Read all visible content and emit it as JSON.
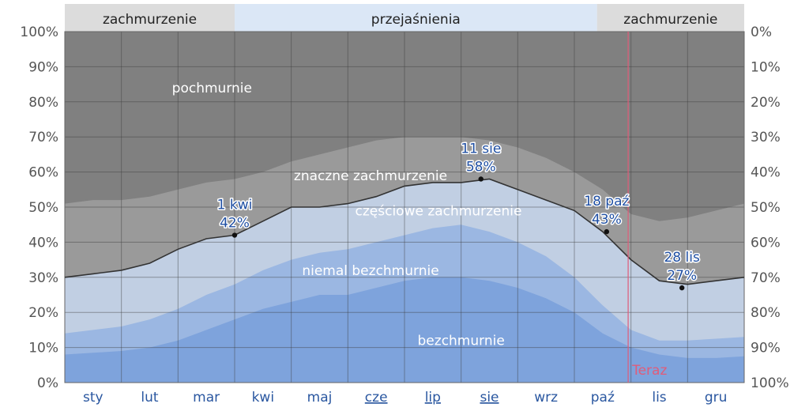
{
  "chart_data": {
    "type": "area",
    "title": "",
    "ylabel_left_ticks": [
      "0%",
      "10%",
      "20%",
      "30%",
      "40%",
      "50%",
      "60%",
      "70%",
      "80%",
      "90%",
      "100%"
    ],
    "ylabel_right_ticks": [
      "100%",
      "90%",
      "80%",
      "70%",
      "60%",
      "50%",
      "40%",
      "30%",
      "20%",
      "10%",
      "0%"
    ],
    "ylim": [
      0,
      100
    ],
    "months": [
      {
        "label": "sty",
        "underline": false
      },
      {
        "label": "lut",
        "underline": false
      },
      {
        "label": "mar",
        "underline": false
      },
      {
        "label": "kwi",
        "underline": false
      },
      {
        "label": "maj",
        "underline": false
      },
      {
        "label": "cze",
        "underline": true
      },
      {
        "label": "lip",
        "underline": true
      },
      {
        "label": "sie",
        "underline": true
      },
      {
        "label": "wrz",
        "underline": false
      },
      {
        "label": "paź",
        "underline": false
      },
      {
        "label": "lis",
        "underline": false
      },
      {
        "label": "gru",
        "underline": false
      }
    ],
    "seasons": [
      {
        "label": "zachmurzenie",
        "start_month": 0,
        "end_month": 3.0,
        "color": "#dcdcdc"
      },
      {
        "label": "przejaśnienia",
        "start_month": 3.0,
        "end_month": 9.4,
        "color": "#dbe7f6"
      },
      {
        "label": "zachmurzenie",
        "start_month": 9.4,
        "end_month": 12,
        "color": "#dcdcdc"
      }
    ],
    "x_months": [
      0,
      0.5,
      1.0,
      1.5,
      2.0,
      2.5,
      3.0,
      3.5,
      4.0,
      4.5,
      5.0,
      5.5,
      6.0,
      6.5,
      7.0,
      7.5,
      8.0,
      8.5,
      9.0,
      9.5,
      10.0,
      10.5,
      11.0,
      11.5,
      12.0
    ],
    "series": [
      {
        "name": "bezchmurnie",
        "color": "#7ea3dc",
        "values": [
          8,
          8.5,
          9,
          10,
          12,
          15,
          18,
          21,
          23,
          25,
          25,
          27,
          29,
          30,
          30,
          29,
          27,
          24,
          20,
          14,
          10,
          8,
          7,
          7,
          7.5
        ]
      },
      {
        "name": "niemal bezchmurnie",
        "color": "#9bb7e2",
        "values": [
          14,
          15,
          16,
          18,
          21,
          25,
          28,
          32,
          35,
          37,
          38,
          40,
          42,
          44,
          45,
          43,
          40,
          36,
          30,
          22,
          15,
          12,
          12,
          12.5,
          13
        ]
      },
      {
        "name": "częściowe zachmurzenie",
        "color": "#c1cfe3",
        "values": [
          30,
          31,
          32,
          34,
          38,
          41,
          42,
          46,
          50,
          50,
          51,
          53,
          56,
          57,
          57,
          58,
          55,
          52,
          49,
          43,
          35,
          29,
          28,
          29,
          30
        ]
      },
      {
        "name": "znaczne zachmurzenie",
        "color": "#9a9a9a",
        "values": [
          51,
          52,
          52,
          53,
          55,
          57,
          58,
          60,
          63,
          65,
          67,
          69,
          70,
          70,
          70,
          69,
          67,
          64,
          60,
          55,
          48,
          46,
          47,
          49,
          51
        ]
      },
      {
        "name": "pochmurnie",
        "color": "#808080",
        "values": [
          100,
          100,
          100,
          100,
          100,
          100,
          100,
          100,
          100,
          100,
          100,
          100,
          100,
          100,
          100,
          100,
          100,
          100,
          100,
          100,
          100,
          100,
          100,
          100,
          100
        ]
      }
    ],
    "clear_line": {
      "color": "#333333",
      "values": [
        30,
        31,
        32,
        34,
        38,
        41,
        42,
        46,
        50,
        50,
        51,
        53,
        56,
        57,
        57,
        58,
        55,
        52,
        49,
        43,
        35,
        29,
        28,
        29,
        30
      ]
    },
    "annotations": [
      {
        "date_label": "1 kwi",
        "value_label": "42%",
        "x_month": 3.0,
        "y": 42
      },
      {
        "date_label": "11 sie",
        "value_label": "58%",
        "x_month": 7.35,
        "y": 58
      },
      {
        "date_label": "18 paź",
        "value_label": "43%",
        "x_month": 9.57,
        "y": 43
      },
      {
        "date_label": "28 lis",
        "value_label": "27%",
        "x_month": 10.9,
        "y": 27
      }
    ],
    "now_marker": {
      "label": "Teraz",
      "x_month": 9.95,
      "color": "#e05c7a"
    },
    "grid": true
  }
}
